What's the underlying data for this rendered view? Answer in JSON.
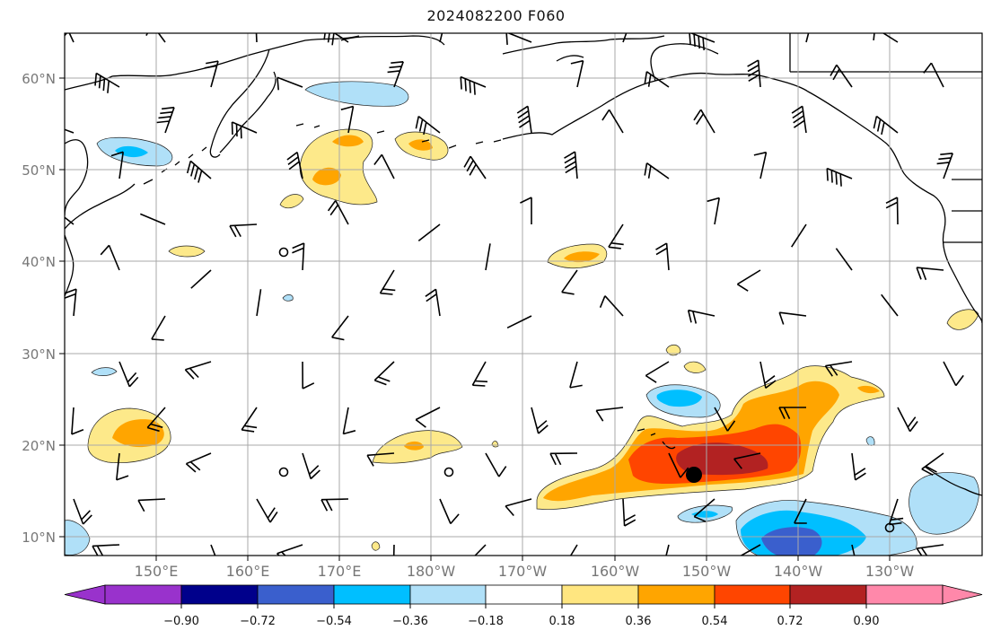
{
  "title": "2024082200 F060",
  "lat_labels": [
    "60°N",
    "50°N",
    "40°N",
    "30°N",
    "20°N",
    "10°N"
  ],
  "lon_labels": [
    "150°E",
    "160°E",
    "170°E",
    "180°W",
    "170°W",
    "160°W",
    "150°W",
    "140°W",
    "130°W"
  ],
  "colorbar": {
    "ticks": [
      "−0.90",
      "−0.72",
      "−0.54",
      "−0.36",
      "−0.18",
      "0.18",
      "0.36",
      "0.54",
      "0.72",
      "0.90"
    ],
    "colors": [
      "#9932cc",
      "#00008b",
      "#3a5fcd",
      "#00bfff",
      "#b0e0f8",
      "#ffffff",
      "#ffe680",
      "#ffa500",
      "#ff4500",
      "#b22222",
      "#ff88aa"
    ]
  },
  "fill_colors": {
    "light_yellow": "#fde98a",
    "orange": "#ffa500",
    "red_orange": "#ff4500",
    "dark_red": "#b22222",
    "light_blue": "#b0e0f8",
    "sky_blue": "#00bfff",
    "medium_blue": "#3a5fcd"
  },
  "marker": {
    "label": "storm-center",
    "lon": -151,
    "lat": 16.5
  }
}
